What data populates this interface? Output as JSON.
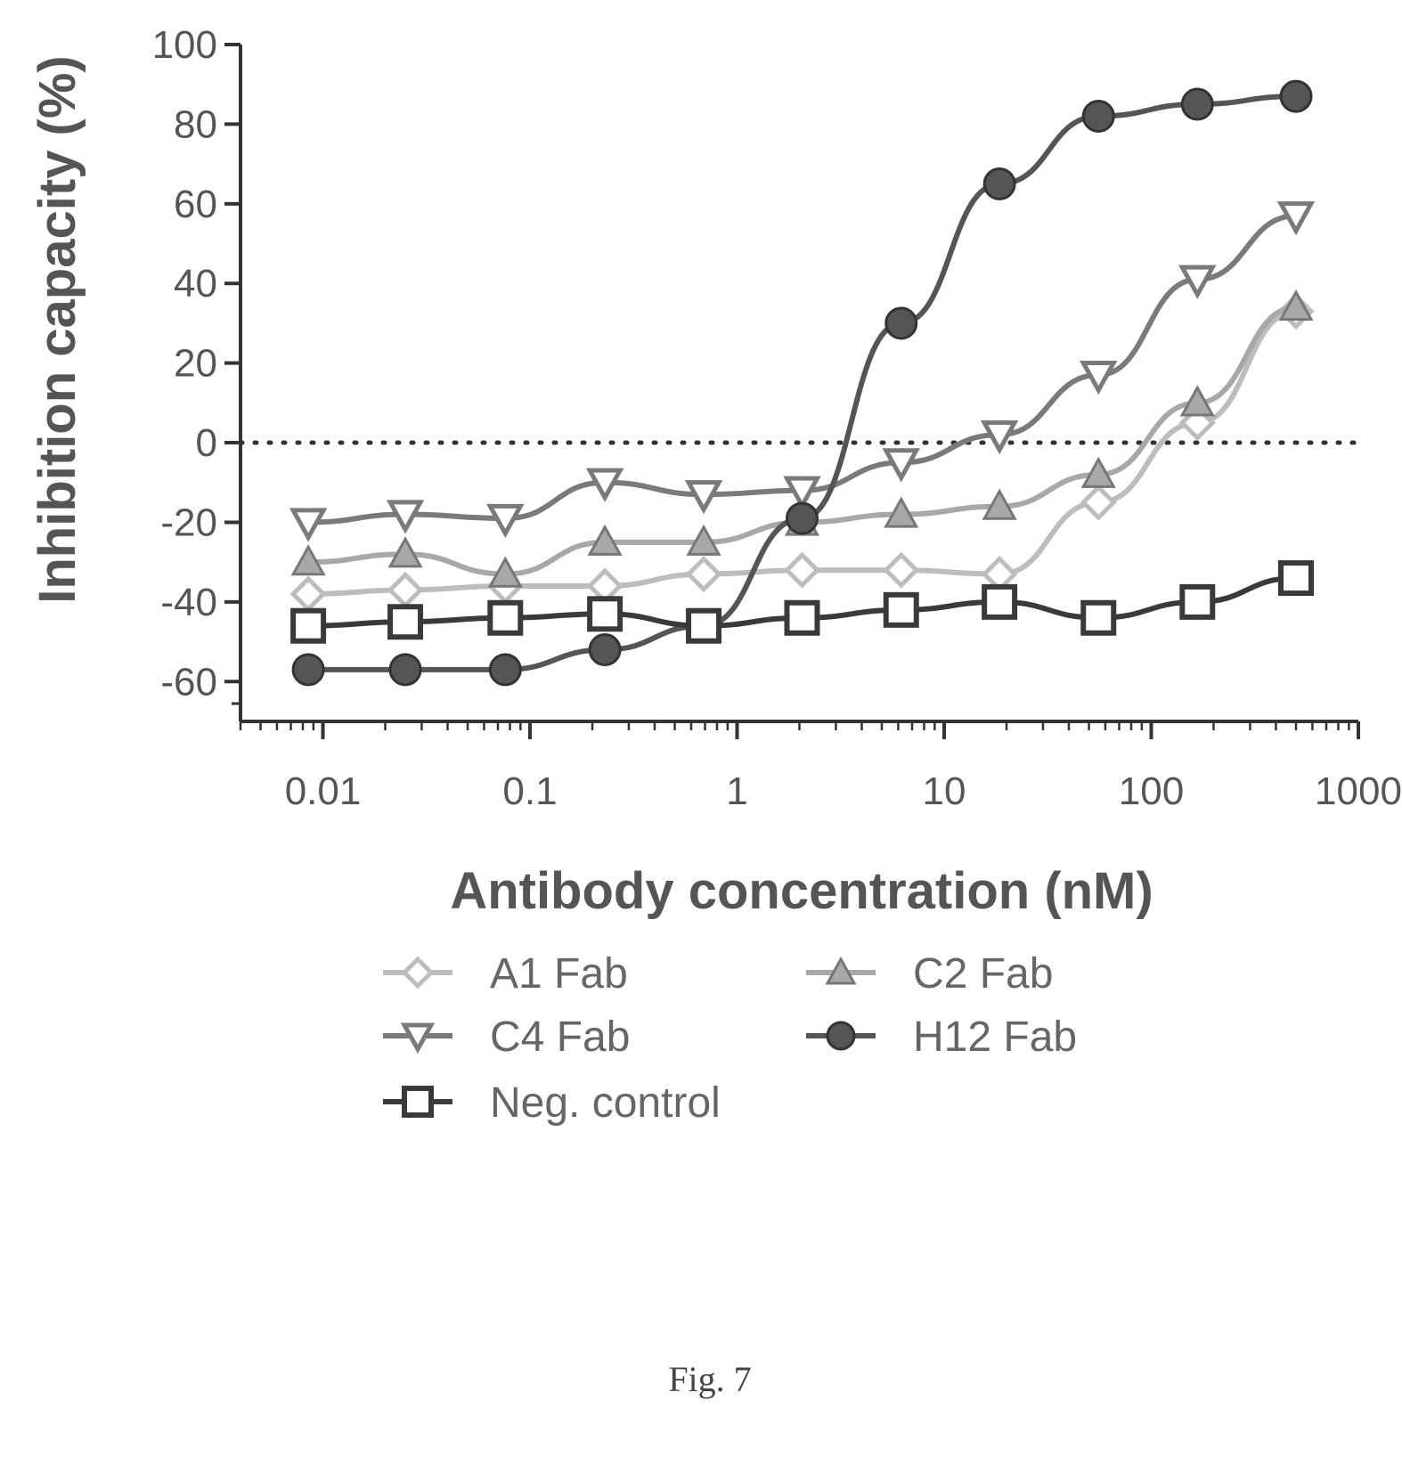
{
  "chart_data": {
    "type": "line",
    "title": "",
    "xlabel": "Antibody concentration (nM)",
    "ylabel": "Inhibition capacity (%)",
    "x_scale": "log",
    "xlim": [
      0.004,
      1000
    ],
    "ylim": [
      -70,
      100
    ],
    "x_tick_labels": [
      "0.01",
      "0.1",
      "1",
      "10",
      "100",
      "1000"
    ],
    "x_tick_values": [
      0.01,
      0.1,
      1,
      10,
      100,
      1000
    ],
    "y_tick_values": [
      100,
      80,
      60,
      40,
      20,
      0,
      -20,
      -40,
      -60
    ],
    "y_tick_labels": [
      "100",
      "80",
      "60",
      "40",
      "20",
      "0",
      "-20",
      "-40",
      "-60"
    ],
    "reference_line": {
      "y": 0,
      "style": "dotted"
    },
    "x": [
      0.0085,
      0.025,
      0.076,
      0.23,
      0.69,
      2.06,
      6.2,
      18.5,
      55.6,
      167,
      500
    ],
    "series": [
      {
        "name": "A1 Fab",
        "marker": "diamond",
        "color": "#bdbdbd",
        "values": [
          -38,
          -37,
          -36,
          -36,
          -33,
          -32,
          -32,
          -33,
          -15,
          5,
          33
        ]
      },
      {
        "name": "C2 Fab",
        "marker": "triangle-up",
        "color": "#a8a8a8",
        "values": [
          -30,
          -28,
          -33,
          -25,
          -25,
          -20,
          -18,
          -16,
          -8,
          10,
          34
        ]
      },
      {
        "name": "C4 Fab",
        "marker": "triangle-down",
        "color": "#7a7a7a",
        "values": [
          -20,
          -18,
          -19,
          -10,
          -13,
          -12,
          -5,
          2,
          17,
          41,
          57
        ]
      },
      {
        "name": "H12 Fab",
        "marker": "circle",
        "color": "#555555",
        "values": [
          -57,
          -57,
          -57,
          -52,
          -46,
          -19,
          30,
          65,
          82,
          85,
          87
        ]
      },
      {
        "name": "Neg. control",
        "marker": "square",
        "color": "#3a3a3a",
        "values": [
          -46,
          -45,
          -44,
          -43,
          -46,
          -44,
          -42,
          -40,
          -44,
          -40,
          -34
        ]
      }
    ],
    "legend_position": "bottom"
  },
  "caption": "Fig. 7"
}
